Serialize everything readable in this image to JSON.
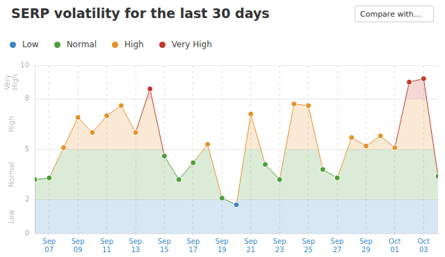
{
  "compare_label": "Compare with…",
  "chart_data": {
    "type": "line",
    "title": "SERP volatility for the last 30 days",
    "categories": [
      null,
      "Sep 07",
      null,
      "Sep 09",
      null,
      "Sep 11",
      null,
      "Sep 13",
      null,
      "Sep 15",
      null,
      "Sep 17",
      null,
      "Sep 19",
      null,
      "Sep 21",
      null,
      "Sep 23",
      null,
      "Sep 25",
      null,
      "Sep 27",
      null,
      "Sep 29",
      null,
      "Oct 01",
      null,
      "Oct 03",
      null
    ],
    "values": [
      3.2,
      3.3,
      5.1,
      6.9,
      6.0,
      7.0,
      7.6,
      6.0,
      8.6,
      4.6,
      3.2,
      4.2,
      5.3,
      2.1,
      1.7,
      7.1,
      4.1,
      3.2,
      7.7,
      7.6,
      3.8,
      3.3,
      5.7,
      5.2,
      5.8,
      5.1,
      9.0,
      9.2,
      3.4
    ],
    "ylim": [
      0,
      10
    ],
    "yticks": [
      0,
      2,
      5,
      8,
      10
    ],
    "grid": true,
    "marker": "circle",
    "bands": [
      {
        "name": "Low",
        "color": "#3a87c8",
        "range": [
          0,
          2
        ]
      },
      {
        "name": "Normal",
        "color": "#4f9d3a",
        "range": [
          2,
          5
        ]
      },
      {
        "name": "High",
        "color": "#e5922a",
        "range": [
          5,
          8
        ]
      },
      {
        "name": "Very High",
        "color": "#c0392b",
        "range": [
          8,
          10
        ]
      }
    ]
  }
}
